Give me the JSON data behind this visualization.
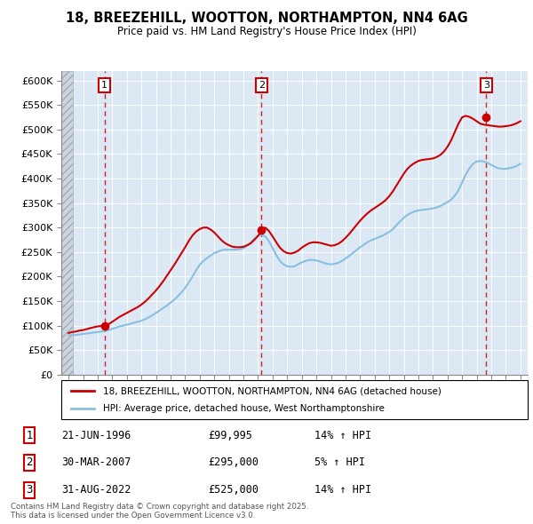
{
  "title": "18, BREEZEHILL, WOOTTON, NORTHAMPTON, NN4 6AG",
  "subtitle": "Price paid vs. HM Land Registry's House Price Index (HPI)",
  "ylabel_ticks": [
    "£0",
    "£50K",
    "£100K",
    "£150K",
    "£200K",
    "£250K",
    "£300K",
    "£350K",
    "£400K",
    "£450K",
    "£500K",
    "£550K",
    "£600K"
  ],
  "ytick_values": [
    0,
    50000,
    100000,
    150000,
    200000,
    250000,
    300000,
    350000,
    400000,
    450000,
    500000,
    550000,
    600000
  ],
  "ylim": [
    0,
    620000
  ],
  "xlim_start": 1993.5,
  "xlim_end": 2025.5,
  "background_color": "#ffffff",
  "plot_bg_color": "#dce9f5",
  "grid_color": "#ffffff",
  "red_line_color": "#cc0000",
  "blue_line_color": "#87BFDF",
  "transaction_dates": [
    1996.47,
    2007.24,
    2022.66
  ],
  "transaction_labels": [
    "1",
    "2",
    "3"
  ],
  "transaction_prices": [
    99995,
    295000,
    525000
  ],
  "transaction_display": [
    "21-JUN-1996",
    "30-MAR-2007",
    "31-AUG-2022"
  ],
  "transaction_amounts": [
    "£99,995",
    "£295,000",
    "£525,000"
  ],
  "transaction_hpi": [
    "14% ↑ HPI",
    "5% ↑ HPI",
    "14% ↑ HPI"
  ],
  "legend_line1": "18, BREEZEHILL, WOOTTON, NORTHAMPTON, NN4 6AG (detached house)",
  "legend_line2": "HPI: Average price, detached house, West Northamptonshire",
  "footnote": "Contains HM Land Registry data © Crown copyright and database right 2025.\nThis data is licensed under the Open Government Licence v3.0.",
  "hpi_x": [
    1994.0,
    1994.25,
    1994.5,
    1994.75,
    1995.0,
    1995.25,
    1995.5,
    1995.75,
    1996.0,
    1996.25,
    1996.5,
    1996.75,
    1997.0,
    1997.25,
    1997.5,
    1997.75,
    1998.0,
    1998.25,
    1998.5,
    1998.75,
    1999.0,
    1999.25,
    1999.5,
    1999.75,
    2000.0,
    2000.25,
    2000.5,
    2000.75,
    2001.0,
    2001.25,
    2001.5,
    2001.75,
    2002.0,
    2002.25,
    2002.5,
    2002.75,
    2003.0,
    2003.25,
    2003.5,
    2003.75,
    2004.0,
    2004.25,
    2004.5,
    2004.75,
    2005.0,
    2005.25,
    2005.5,
    2005.75,
    2006.0,
    2006.25,
    2006.5,
    2006.75,
    2007.0,
    2007.25,
    2007.5,
    2007.75,
    2008.0,
    2008.25,
    2008.5,
    2008.75,
    2009.0,
    2009.25,
    2009.5,
    2009.75,
    2010.0,
    2010.25,
    2010.5,
    2010.75,
    2011.0,
    2011.25,
    2011.5,
    2011.75,
    2012.0,
    2012.25,
    2012.5,
    2012.75,
    2013.0,
    2013.25,
    2013.5,
    2013.75,
    2014.0,
    2014.25,
    2014.5,
    2014.75,
    2015.0,
    2015.25,
    2015.5,
    2015.75,
    2016.0,
    2016.25,
    2016.5,
    2016.75,
    2017.0,
    2017.25,
    2017.5,
    2017.75,
    2018.0,
    2018.25,
    2018.5,
    2018.75,
    2019.0,
    2019.25,
    2019.5,
    2019.75,
    2020.0,
    2020.25,
    2020.5,
    2020.75,
    2021.0,
    2021.25,
    2021.5,
    2021.75,
    2022.0,
    2022.25,
    2022.5,
    2022.75,
    2023.0,
    2023.25,
    2023.5,
    2023.75,
    2024.0,
    2024.25,
    2024.5,
    2024.75,
    2025.0
  ],
  "hpi_y": [
    80000,
    80500,
    81000,
    82000,
    83000,
    84000,
    85000,
    86000,
    87000,
    88000,
    89000,
    91000,
    93500,
    96000,
    98500,
    100000,
    102000,
    104000,
    106000,
    108000,
    110000,
    113000,
    117000,
    121000,
    126000,
    131000,
    136000,
    141000,
    147000,
    153000,
    160000,
    168000,
    177000,
    188000,
    200000,
    213000,
    224000,
    232000,
    238000,
    243000,
    248000,
    251000,
    254000,
    255000,
    255000,
    255000,
    255000,
    256000,
    258000,
    263000,
    270000,
    278000,
    284000,
    285000,
    282000,
    272000,
    258000,
    244000,
    232000,
    225000,
    221000,
    220000,
    221000,
    225000,
    229000,
    232000,
    234000,
    234000,
    233000,
    231000,
    228000,
    226000,
    225000,
    226000,
    228000,
    232000,
    237000,
    242000,
    248000,
    254000,
    260000,
    265000,
    270000,
    274000,
    277000,
    280000,
    283000,
    287000,
    291000,
    297000,
    305000,
    313000,
    320000,
    326000,
    330000,
    333000,
    335000,
    336000,
    337000,
    338000,
    339000,
    341000,
    344000,
    348000,
    352000,
    357000,
    365000,
    376000,
    392000,
    408000,
    421000,
    430000,
    435000,
    436000,
    435000,
    432000,
    428000,
    424000,
    421000,
    420000,
    420000,
    421000,
    423000,
    426000,
    430000
  ],
  "red_x": [
    1994.0,
    1994.25,
    1994.5,
    1994.75,
    1995.0,
    1995.25,
    1995.5,
    1995.75,
    1996.0,
    1996.25,
    1996.5,
    1996.75,
    1997.0,
    1997.25,
    1997.5,
    1997.75,
    1998.0,
    1998.25,
    1998.5,
    1998.75,
    1999.0,
    1999.25,
    1999.5,
    1999.75,
    2000.0,
    2000.25,
    2000.5,
    2000.75,
    2001.0,
    2001.25,
    2001.5,
    2001.75,
    2002.0,
    2002.25,
    2002.5,
    2002.75,
    2003.0,
    2003.25,
    2003.5,
    2003.75,
    2004.0,
    2004.25,
    2004.5,
    2004.75,
    2005.0,
    2005.25,
    2005.5,
    2005.75,
    2006.0,
    2006.25,
    2006.5,
    2006.75,
    2007.0,
    2007.25,
    2007.5,
    2007.75,
    2008.0,
    2008.25,
    2008.5,
    2008.75,
    2009.0,
    2009.25,
    2009.5,
    2009.75,
    2010.0,
    2010.25,
    2010.5,
    2010.75,
    2011.0,
    2011.25,
    2011.5,
    2011.75,
    2012.0,
    2012.25,
    2012.5,
    2012.75,
    2013.0,
    2013.25,
    2013.5,
    2013.75,
    2014.0,
    2014.25,
    2014.5,
    2014.75,
    2015.0,
    2015.25,
    2015.5,
    2015.75,
    2016.0,
    2016.25,
    2016.5,
    2016.75,
    2017.0,
    2017.25,
    2017.5,
    2017.75,
    2018.0,
    2018.25,
    2018.5,
    2018.75,
    2019.0,
    2019.25,
    2019.5,
    2019.75,
    2020.0,
    2020.25,
    2020.5,
    2020.75,
    2021.0,
    2021.25,
    2021.5,
    2021.75,
    2022.0,
    2022.25,
    2022.5,
    2022.75,
    2023.0,
    2023.25,
    2023.5,
    2023.75,
    2024.0,
    2024.25,
    2024.5,
    2024.75,
    2025.0
  ],
  "red_y": [
    85000,
    87000,
    88000,
    90000,
    91000,
    93000,
    95000,
    97000,
    98500,
    99200,
    99995,
    103000,
    108000,
    113000,
    118000,
    122000,
    126000,
    130000,
    134000,
    138000,
    143000,
    149000,
    156000,
    164000,
    172000,
    181000,
    191000,
    202000,
    213000,
    224000,
    236000,
    248000,
    260000,
    273000,
    284000,
    292000,
    297000,
    300000,
    300000,
    296000,
    290000,
    282000,
    274000,
    268000,
    264000,
    261000,
    260000,
    260000,
    261000,
    264000,
    268000,
    275000,
    283000,
    295000,
    300000,
    293000,
    282000,
    270000,
    259000,
    252000,
    248000,
    247000,
    249000,
    253000,
    259000,
    264000,
    268000,
    270000,
    270000,
    269000,
    267000,
    265000,
    263000,
    264000,
    267000,
    272000,
    279000,
    287000,
    296000,
    305000,
    314000,
    322000,
    329000,
    335000,
    340000,
    345000,
    350000,
    356000,
    364000,
    374000,
    386000,
    398000,
    410000,
    420000,
    427000,
    432000,
    436000,
    438000,
    439000,
    440000,
    441000,
    444000,
    448000,
    455000,
    465000,
    478000,
    495000,
    512000,
    525000,
    528000,
    526000,
    522000,
    517000,
    512000,
    510000,
    509000,
    508000,
    507000,
    506000,
    506000,
    507000,
    508000,
    510000,
    513000,
    517000
  ]
}
